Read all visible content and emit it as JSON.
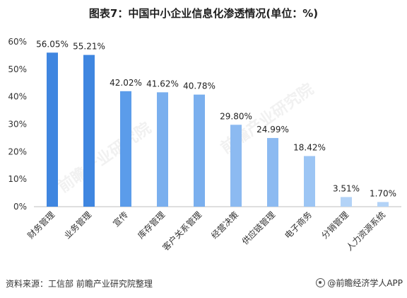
{
  "title": "图表7：中国中小企业信息化渗透情况(单位：%)",
  "source": "资料来源：工信部 前瞻产业研究院整理",
  "brand": "@前瞻经济学人APP",
  "watermark": "前瞻产业研究院",
  "colors": {
    "axis": "#bfbfbf",
    "bars": [
      "#3f86e0",
      "#3f86e0",
      "#5b9cea",
      "#7aafee",
      "#7aafee",
      "#8cbaf1",
      "#8cbaf1",
      "#9cc5f4",
      "#b3d3f7",
      "#b3d3f7",
      "#c6dffa"
    ]
  },
  "chart_data": {
    "type": "bar",
    "categories": [
      "财务管理",
      "业务管理",
      "宣传",
      "库存管理",
      "客户关系管理",
      "经营决策",
      "供应链管理",
      "电子商务",
      "分销管理",
      "人力资源系统"
    ],
    "values": [
      56.05,
      55.21,
      42.02,
      41.62,
      40.78,
      29.8,
      24.99,
      18.42,
      3.51,
      1.7
    ],
    "data_labels": [
      "56.05%",
      "55.21%",
      "42.02%",
      "41.62%",
      "40.78%",
      "29.80%",
      "24.99%",
      "18.42%",
      "3.51%",
      "1.70%"
    ],
    "y_ticks": [
      "0%",
      "10%",
      "20%",
      "30%",
      "40%",
      "50%",
      "60%"
    ],
    "ylim": [
      0,
      60
    ],
    "grid": false,
    "legend": "none"
  }
}
